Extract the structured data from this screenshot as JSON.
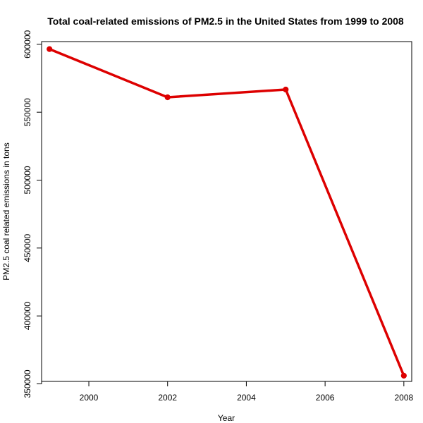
{
  "chart_data": {
    "type": "line",
    "title": "Total coal-related emissions of PM2.5 in the United States from 1999 to 2008",
    "xlabel": "Year",
    "ylabel": "PM2.5 coal related emissions in tons",
    "x": [
      1999,
      2002,
      2005,
      2008
    ],
    "series": [
      {
        "values": [
          596500,
          561000,
          566700,
          356000
        ],
        "color": "#dd0000"
      }
    ],
    "x_ticks": [
      2000,
      2002,
      2004,
      2006,
      2008
    ],
    "y_ticks": [
      350000,
      400000,
      450000,
      500000,
      550000,
      600000
    ],
    "xlim": [
      1998.8,
      2008.2
    ],
    "ylim": [
      351800,
      602000
    ],
    "grid": false,
    "legend": "none",
    "marker": "filled-circle"
  }
}
